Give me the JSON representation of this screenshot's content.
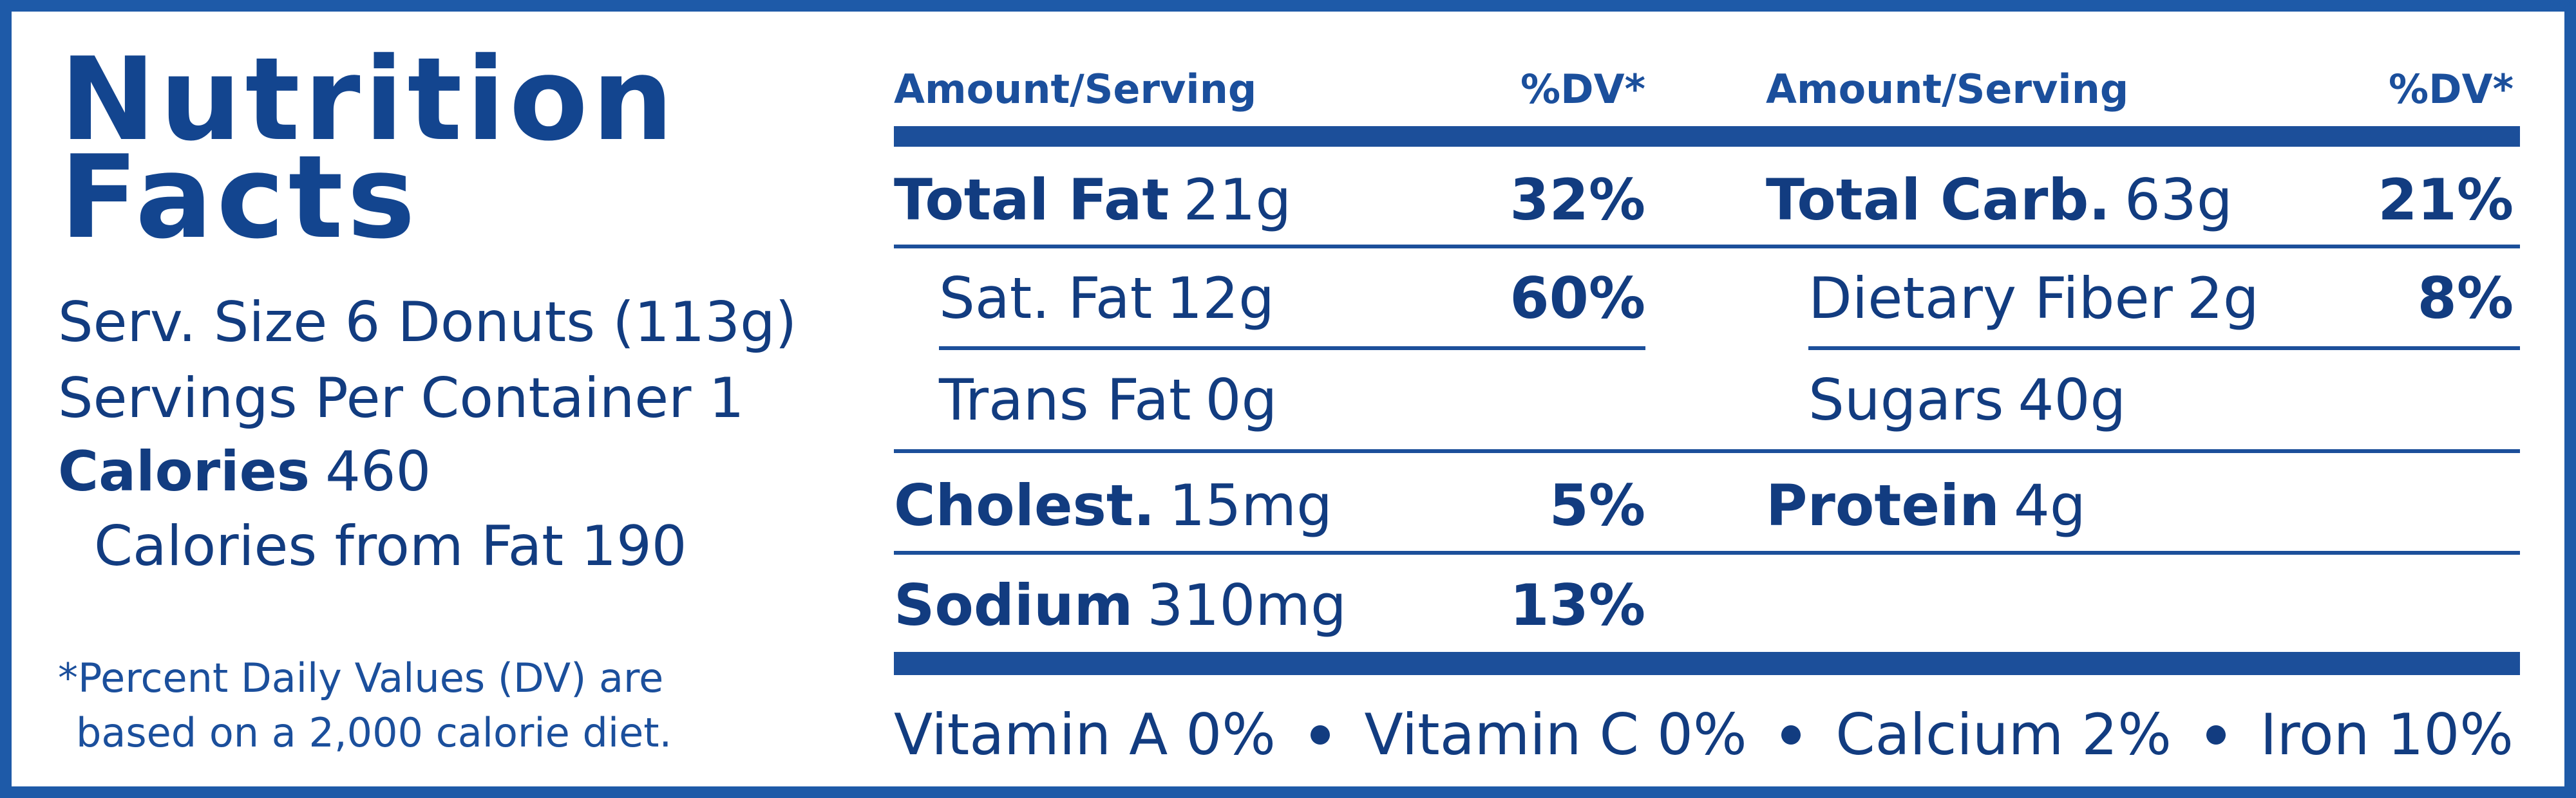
{
  "title_lines": [
    "Nutrition",
    "Facts"
  ],
  "serving_size": "Serv. Size 6 Donuts (113g)",
  "servings_per_container": "Servings Per Container 1",
  "calories": {
    "label": "Calories",
    "value": "460"
  },
  "calories_from_fat": "Calories from Fat 190",
  "footnote_lines": [
    "*Percent Daily Values (DV) are",
    "based on a 2,000 calorie diet."
  ],
  "columns": [
    {
      "header_amount": "Amount/Serving",
      "header_dv": "%DV*",
      "rows": [
        {
          "name": "Total Fat",
          "amount": "21g",
          "dv": "32%",
          "sub": [
            {
              "name": "Sat. Fat",
              "amount": "12g",
              "dv": "60%"
            },
            {
              "name": "Trans Fat",
              "amount": "0g"
            }
          ]
        },
        {
          "name": "Cholest.",
          "amount": "15mg",
          "dv": "5%"
        },
        {
          "name": "Sodium",
          "amount": "310mg",
          "dv": "13%"
        }
      ]
    },
    {
      "header_amount": "Amount/Serving",
      "header_dv": "%DV*",
      "rows": [
        {
          "name": "Total Carb.",
          "amount": "63g",
          "dv": "21%",
          "sub": [
            {
              "name": "Dietary Fiber",
              "amount": "2g",
              "dv": "8%"
            },
            {
              "name": "Sugars",
              "amount": "40g"
            }
          ]
        },
        {
          "name": "Protein",
          "amount": "4g"
        }
      ]
    }
  ],
  "vitamins": [
    "Vitamin A 0%",
    "Vitamin C 0%",
    "Calcium 2%",
    "Iron 10%"
  ]
}
